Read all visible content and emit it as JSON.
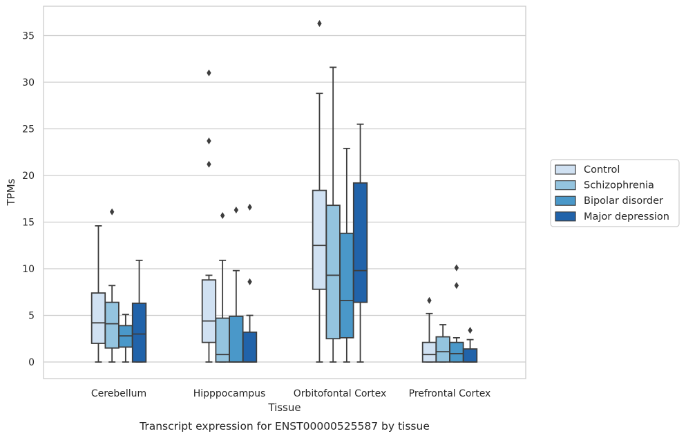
{
  "chart_data": {
    "type": "boxplot",
    "xlabel": "Tissue",
    "ylabel": "TPMs",
    "caption": "Transcript expression for ENST00000525587 by tissue",
    "ylim": [
      -1.7,
      38
    ],
    "yticks": [
      0,
      5,
      10,
      15,
      20,
      25,
      30,
      35
    ],
    "grid": "horizontal",
    "legend_position": "right",
    "categories": [
      "Cerebellum",
      "Hipppocampus",
      "Orbitofontal Cortex",
      "Prefrontal Cortex"
    ],
    "series": [
      {
        "name": "Control",
        "color": "#d0e1f2",
        "boxes": [
          {
            "whislo": 0,
            "q1": 2.0,
            "med": 4.2,
            "q3": 7.4,
            "whishi": 14.6,
            "fliers": []
          },
          {
            "whislo": 0,
            "q1": 2.1,
            "med": 4.4,
            "q3": 8.8,
            "whishi": 9.3,
            "fliers": [
              21.2,
              23.7,
              31.0
            ]
          },
          {
            "whislo": 0,
            "q1": 7.8,
            "med": 12.5,
            "q3": 18.4,
            "whishi": 28.8,
            "fliers": [
              36.3
            ]
          },
          {
            "whislo": 0,
            "q1": 0,
            "med": 0.8,
            "q3": 2.1,
            "whishi": 5.2,
            "fliers": [
              6.6
            ]
          }
        ]
      },
      {
        "name": "Schizophrenia",
        "color": "#94c4df",
        "boxes": [
          {
            "whislo": 0,
            "q1": 1.5,
            "med": 4.1,
            "q3": 6.4,
            "whishi": 8.2,
            "fliers": [
              16.1
            ]
          },
          {
            "whislo": 0,
            "q1": 0,
            "med": 0.8,
            "q3": 4.7,
            "whishi": 10.9,
            "fliers": [
              15.7
            ]
          },
          {
            "whislo": 0,
            "q1": 2.5,
            "med": 9.3,
            "q3": 16.8,
            "whishi": 31.6,
            "fliers": []
          },
          {
            "whislo": 0,
            "q1": 0,
            "med": 1.1,
            "q3": 2.7,
            "whishi": 4.0,
            "fliers": []
          }
        ]
      },
      {
        "name": "Bipolar disorder",
        "color": "#4a98c9",
        "boxes": [
          {
            "whislo": 0,
            "q1": 1.6,
            "med": 2.8,
            "q3": 3.9,
            "whishi": 5.1,
            "fliers": []
          },
          {
            "whislo": 0,
            "q1": 0,
            "med": 0,
            "q3": 4.9,
            "whishi": 9.8,
            "fliers": [
              16.3
            ]
          },
          {
            "whislo": 0,
            "q1": 2.6,
            "med": 6.6,
            "q3": 13.8,
            "whishi": 22.9,
            "fliers": []
          },
          {
            "whislo": 0,
            "q1": 0,
            "med": 0.9,
            "q3": 2.1,
            "whishi": 2.6,
            "fliers": [
              8.2,
              10.1
            ]
          }
        ]
      },
      {
        "name": "Major depression",
        "color": "#2163aa",
        "boxes": [
          {
            "whislo": 0,
            "q1": 0,
            "med": 3.0,
            "q3": 6.3,
            "whishi": 10.9,
            "fliers": []
          },
          {
            "whislo": 0,
            "q1": 0,
            "med": 0,
            "q3": 3.2,
            "whishi": 5.0,
            "fliers": [
              8.6,
              16.6
            ]
          },
          {
            "whislo": 0,
            "q1": 6.4,
            "med": 9.8,
            "q3": 19.2,
            "whishi": 25.5,
            "fliers": []
          },
          {
            "whislo": 0,
            "q1": 0,
            "med": 0,
            "q3": 1.4,
            "whishi": 2.4,
            "fliers": [
              3.4
            ]
          }
        ]
      }
    ]
  }
}
